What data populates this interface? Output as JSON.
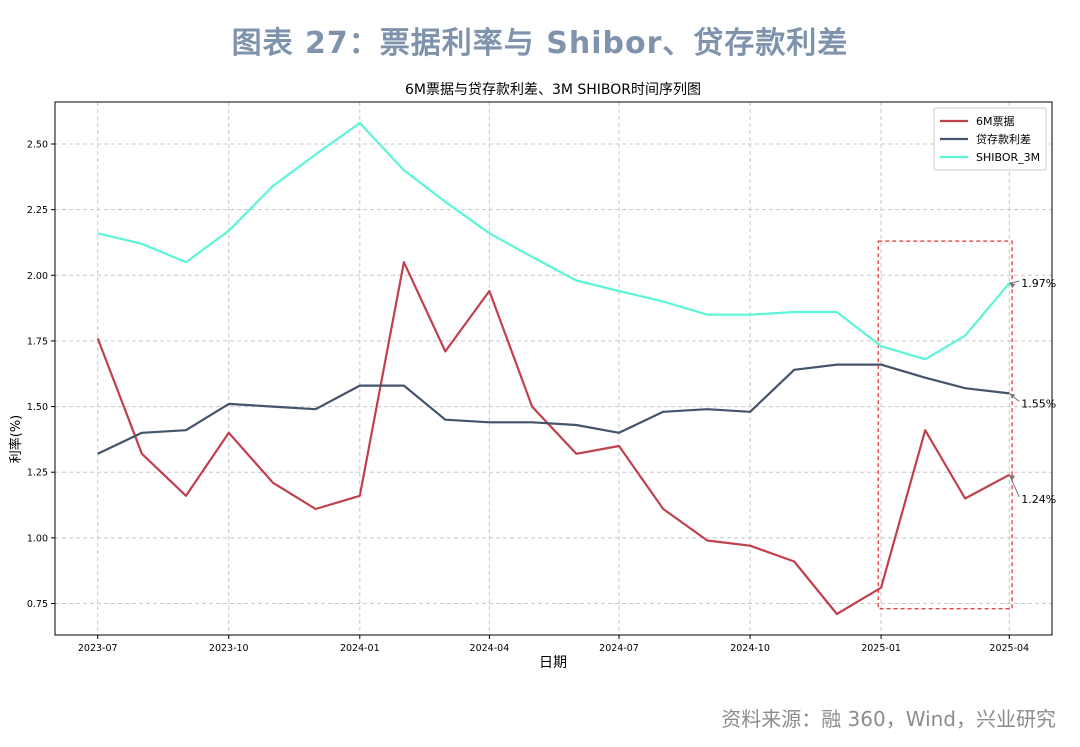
{
  "figure_title": "图表 27：票据利率与 Shibor、贷存款利差",
  "source_note": "资料来源：融 360，Wind，兴业研究",
  "colors": {
    "bill": "#c0404e",
    "spread": "#44546a",
    "shibor": "#5cf5d8",
    "highlight": "#e03030"
  },
  "chart_data": {
    "type": "line",
    "title": "6M票据与贷存款利差、3M SHIBOR时间序列图",
    "xlabel": "日期",
    "ylabel": "利率(%)",
    "ylim": [
      0.63,
      2.66
    ],
    "yticks": [
      0.75,
      1.0,
      1.25,
      1.5,
      1.75,
      2.0,
      2.25,
      2.5
    ],
    "ytick_labels": [
      "0.75",
      "1.00",
      "1.25",
      "1.50",
      "1.75",
      "2.00",
      "2.25",
      "2.50"
    ],
    "xlim": [
      "2023-06",
      "2025-05"
    ],
    "xticks": [
      "2023-07",
      "2023-10",
      "2024-01",
      "2024-04",
      "2024-07",
      "2024-10",
      "2025-01",
      "2025-04"
    ],
    "x": [
      "2023-07",
      "2023-08",
      "2023-09",
      "2023-10",
      "2023-11",
      "2023-12",
      "2024-01",
      "2024-02",
      "2024-03",
      "2024-04",
      "2024-05",
      "2024-06",
      "2024-07",
      "2024-08",
      "2024-09",
      "2024-10",
      "2024-11",
      "2024-12",
      "2025-01",
      "2025-02",
      "2025-03",
      "2025-04"
    ],
    "grid": true,
    "legend": "top-right",
    "series": [
      {
        "name": "6M票据",
        "color_key": "bill",
        "values": [
          1.76,
          1.32,
          1.16,
          1.4,
          1.21,
          1.11,
          1.16,
          2.05,
          1.71,
          1.94,
          1.5,
          1.32,
          1.35,
          1.11,
          0.99,
          0.97,
          0.91,
          0.71,
          0.81,
          1.41,
          1.15,
          1.24
        ]
      },
      {
        "name": "贷存款利差",
        "color_key": "spread",
        "values": [
          1.32,
          1.4,
          1.41,
          1.51,
          1.5,
          1.49,
          1.58,
          1.58,
          1.45,
          1.44,
          1.44,
          1.43,
          1.4,
          1.48,
          1.49,
          1.48,
          1.64,
          1.66,
          1.66,
          1.61,
          1.57,
          1.55
        ]
      },
      {
        "name": "SHIBOR_3M",
        "color_key": "shibor",
        "values": [
          2.16,
          2.12,
          2.05,
          2.17,
          2.34,
          2.46,
          2.58,
          2.4,
          2.28,
          2.16,
          2.07,
          1.98,
          1.94,
          1.9,
          1.85,
          1.85,
          1.86,
          1.86,
          1.73,
          1.68,
          1.77,
          1.97
        ]
      }
    ],
    "annotations": [
      {
        "text": "1.97%",
        "series": 2,
        "x": "2025-04",
        "y": 1.97
      },
      {
        "text": "1.55%",
        "series": 1,
        "x": "2025-04",
        "y": 1.55
      },
      {
        "text": "1.24%",
        "series": 0,
        "x": "2025-04",
        "y": 1.24
      }
    ],
    "highlight_box": {
      "x_from": "2024-12-30",
      "x_to": "2025-04-03",
      "y_from": 0.73,
      "y_to": 2.13,
      "style": "dashed"
    }
  }
}
